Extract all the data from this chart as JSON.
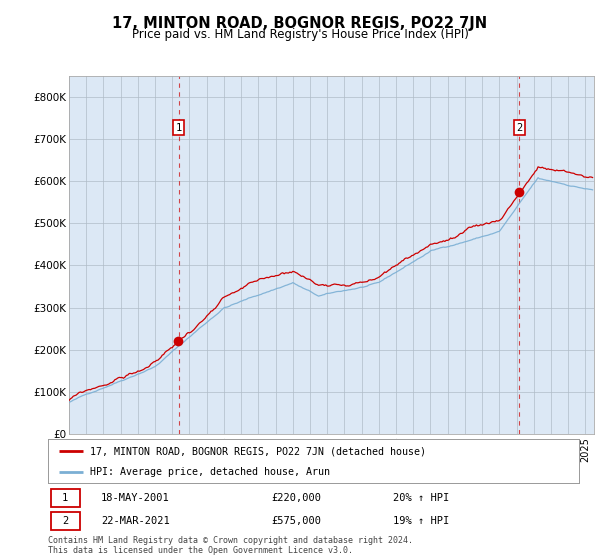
{
  "title": "17, MINTON ROAD, BOGNOR REGIS, PO22 7JN",
  "subtitle": "Price paid vs. HM Land Registry's House Price Index (HPI)",
  "background_color": "#dce8f5",
  "outer_bg_color": "#ffffff",
  "red_color": "#cc0000",
  "blue_color": "#7bafd4",
  "sale1_year": 2001.37,
  "sale1_price": 220000,
  "sale2_year": 2021.17,
  "sale2_price": 575000,
  "sale1_label": "18-MAY-2001",
  "sale1_price_str": "£220,000",
  "sale1_hpi": "20% ↑ HPI",
  "sale2_label": "22-MAR-2021",
  "sale2_price_str": "£575,000",
  "sale2_hpi": "19% ↑ HPI",
  "legend1": "17, MINTON ROAD, BOGNOR REGIS, PO22 7JN (detached house)",
  "legend2": "HPI: Average price, detached house, Arun",
  "footnote1": "Contains HM Land Registry data © Crown copyright and database right 2024.",
  "footnote2": "This data is licensed under the Open Government Licence v3.0.",
  "ylim": [
    0,
    850000
  ],
  "xlim_start": 1995,
  "xlim_end": 2025.5
}
